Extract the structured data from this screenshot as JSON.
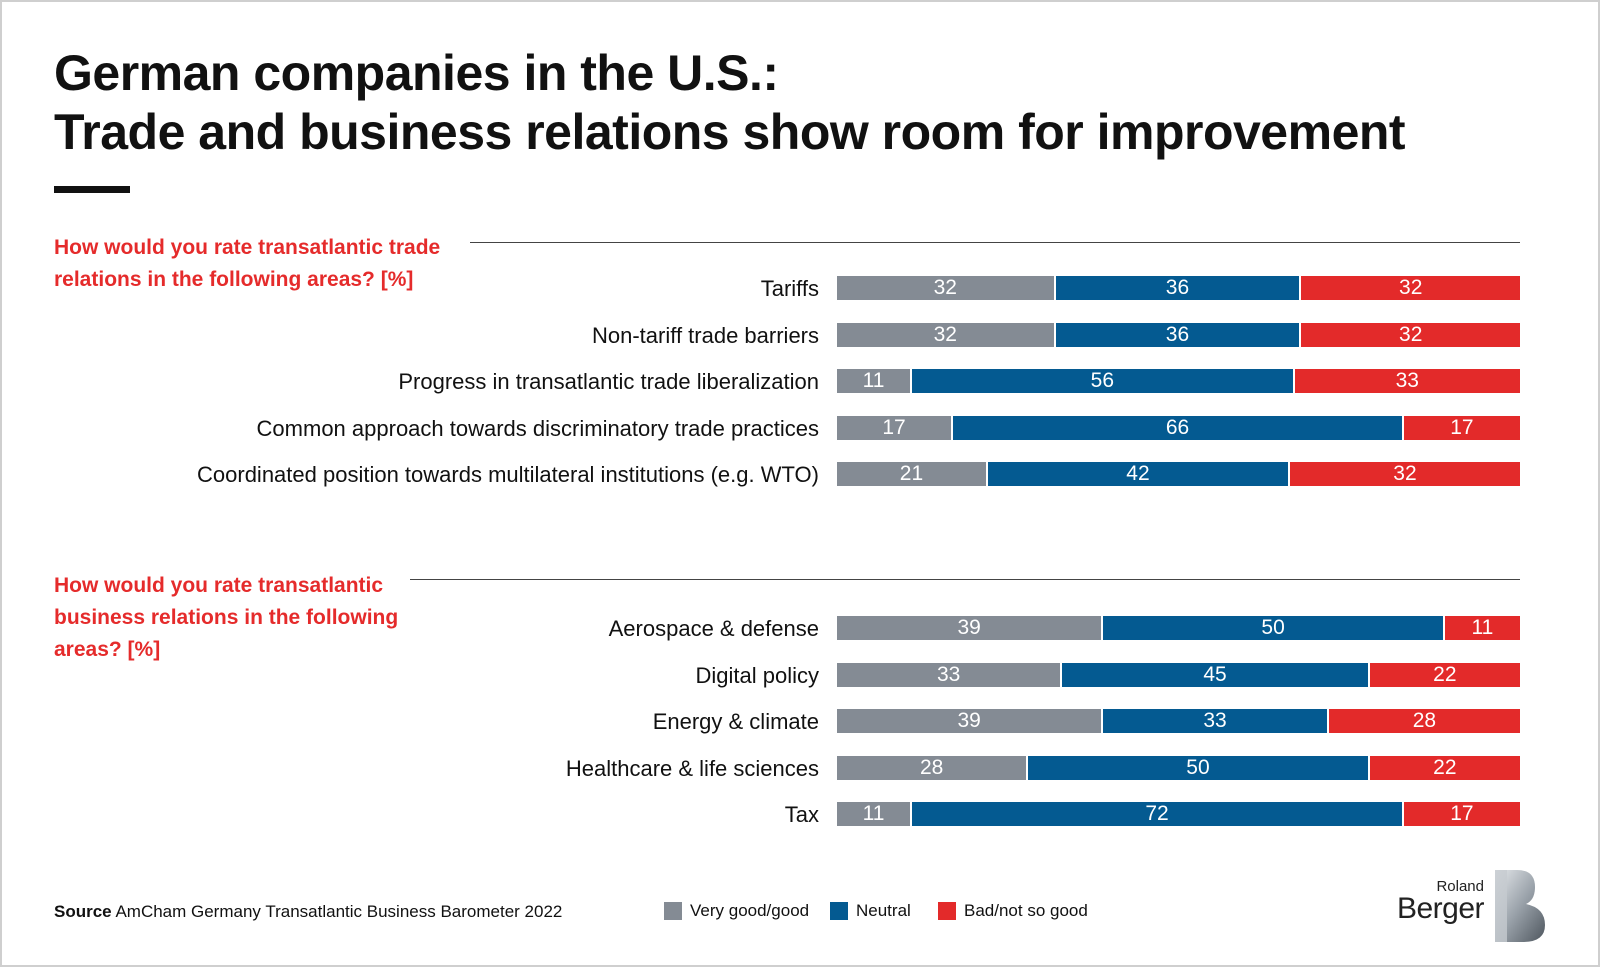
{
  "title_line1": "German companies in the U.S.:",
  "title_line2": "Trade and business relations show room for improvement",
  "colors": {
    "good": "#848b94",
    "neutral": "#045a91",
    "bad": "#e32a2a",
    "question": "#e52b2b"
  },
  "source": {
    "label": "Source",
    "text": "AmCham Germany Transatlantic Business Barometer 2022"
  },
  "legend": [
    "Very good/good",
    "Neutral",
    "Bad/not so good"
  ],
  "logo": {
    "line1": "Roland",
    "line2": "Berger"
  },
  "chart_data": [
    {
      "type": "bar",
      "stacked": true,
      "orientation": "horizontal",
      "title": "How would you rate transatlantic trade relations in the following areas? [%]",
      "categories": [
        "Tariffs",
        "Non-tariff trade barriers",
        "Progress in transatlantic trade liberalization",
        "Common approach towards discriminatory trade practices",
        "Coordinated position towards multilateral institutions (e.g. WTO)"
      ],
      "series": [
        {
          "name": "Very good/good",
          "values": [
            32,
            32,
            11,
            17,
            21
          ]
        },
        {
          "name": "Neutral",
          "values": [
            36,
            36,
            56,
            66,
            42
          ]
        },
        {
          "name": "Bad/not so good",
          "values": [
            32,
            32,
            33,
            17,
            32
          ]
        }
      ]
    },
    {
      "type": "bar",
      "stacked": true,
      "orientation": "horizontal",
      "title": "How would you rate transatlantic business relations in the following areas? [%]",
      "categories": [
        "Aerospace & defense",
        "Digital policy",
        "Energy & climate",
        "Healthcare & life sciences",
        "Tax"
      ],
      "series": [
        {
          "name": "Very good/good",
          "values": [
            39,
            33,
            39,
            28,
            11
          ]
        },
        {
          "name": "Neutral",
          "values": [
            50,
            45,
            33,
            50,
            72
          ]
        },
        {
          "name": "Bad/not so good",
          "values": [
            11,
            22,
            28,
            22,
            17
          ]
        }
      ]
    }
  ]
}
